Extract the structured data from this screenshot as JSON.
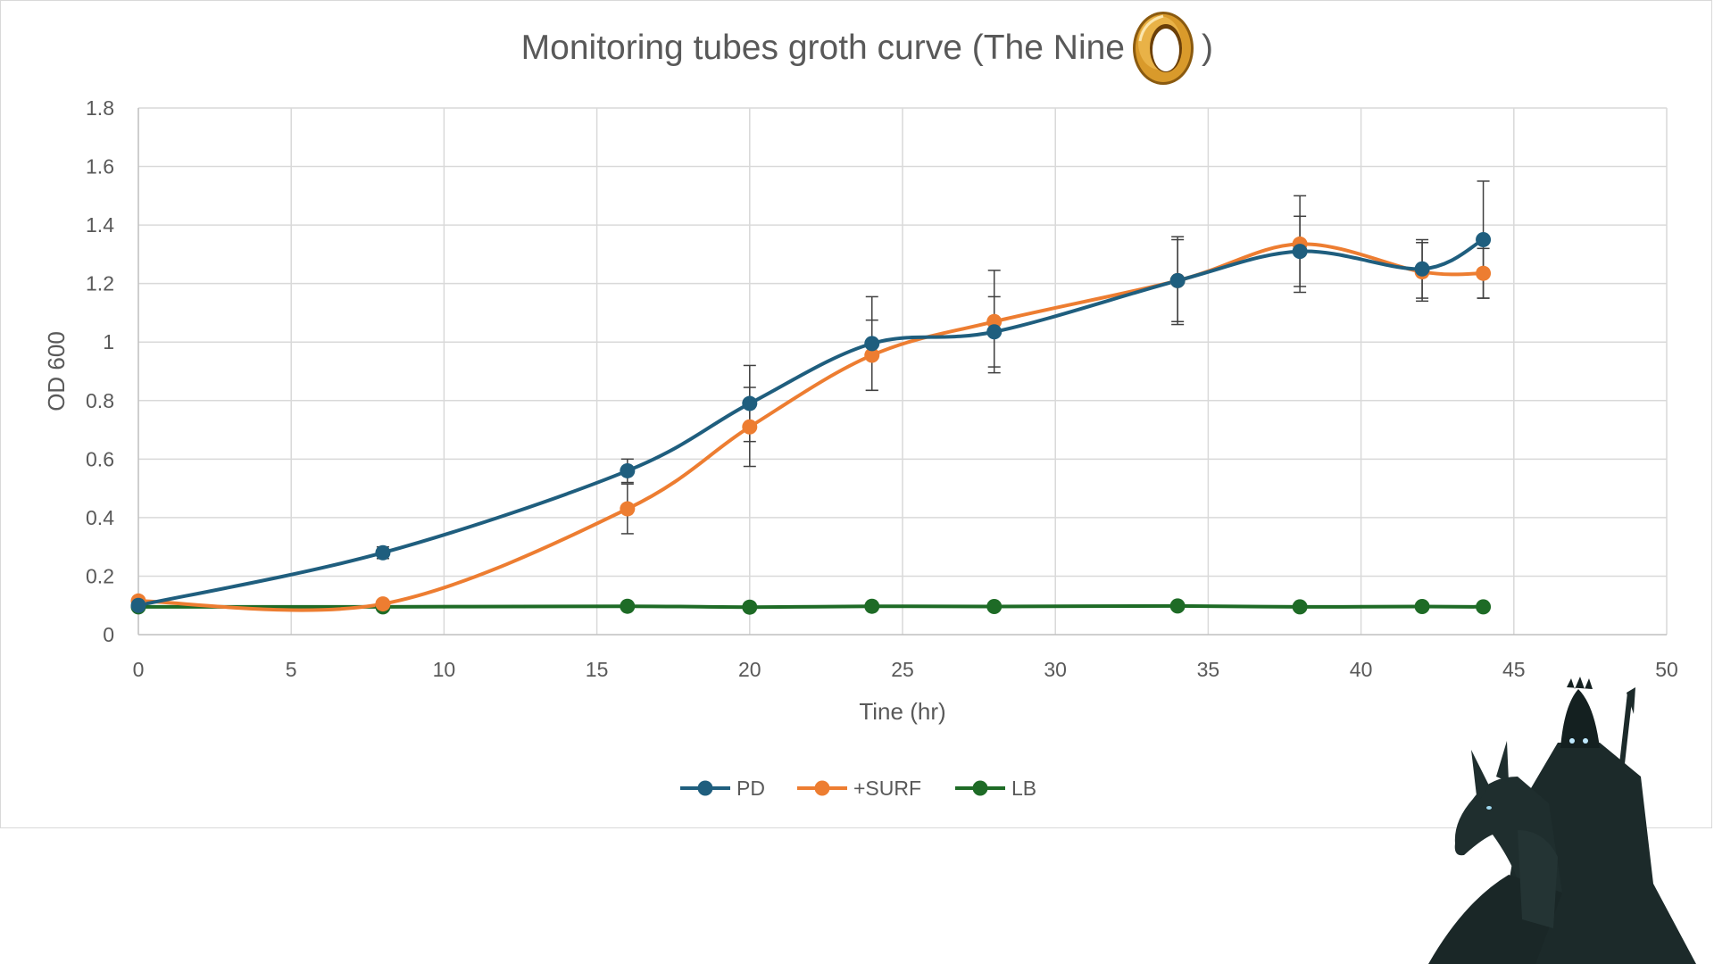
{
  "chart_data": {
    "type": "line",
    "title": "Monitoring tubes groth curve (The Nine",
    "title_close": ")",
    "title_icon": "gold-ring-icon",
    "xlabel": "Tine (hr)",
    "ylabel": "OD 600",
    "xlim": [
      0,
      50
    ],
    "ylim": [
      0,
      1.8
    ],
    "xticks": [
      0,
      5,
      10,
      15,
      20,
      25,
      30,
      35,
      40,
      45,
      50
    ],
    "yticks": [
      0,
      0.2,
      0.4,
      0.6,
      0.8,
      1,
      1.2,
      1.4,
      1.6,
      1.8
    ],
    "ytick_labels": [
      "0",
      "0.2",
      "0.4",
      "0.6",
      "0.8",
      "1",
      "1.2",
      "1.4",
      "1.6",
      "1.8"
    ],
    "grid": true,
    "smooth": true,
    "legend": "bottom",
    "x": [
      0,
      8,
      16,
      20,
      24,
      28,
      34,
      38,
      42,
      44
    ],
    "series": [
      {
        "name": "PD",
        "color": "#1f5e7e",
        "values": [
          0.1,
          0.28,
          0.56,
          0.79,
          0.995,
          1.035,
          1.21,
          1.31,
          1.25,
          1.35
        ],
        "errors": [
          0.01,
          0.02,
          0.04,
          0.13,
          0.16,
          0.12,
          0.15,
          0.12,
          0.1,
          0.2
        ]
      },
      {
        "name": "+SURF",
        "color": "#ed7d31",
        "values": [
          0.115,
          0.105,
          0.43,
          0.71,
          0.955,
          1.07,
          1.21,
          1.335,
          1.24,
          1.235
        ],
        "errors": [
          0.005,
          0.01,
          0.085,
          0.135,
          0.12,
          0.175,
          0.14,
          0.165,
          0.1,
          0.085
        ]
      },
      {
        "name": "LB",
        "color": "#1e6b26",
        "values": [
          0.095,
          0.095,
          0.097,
          0.094,
          0.097,
          0.096,
          0.098,
          0.095,
          0.096,
          0.095
        ],
        "errors": [
          0,
          0,
          0,
          0,
          0,
          0,
          0,
          0,
          0,
          0
        ]
      }
    ]
  },
  "decorations": {
    "ring_icon": "gold-ring-icon",
    "rider_icon": "dark-rider-icon",
    "ring_color": "#c58a1c",
    "rider_color": "#1c2a2a"
  }
}
